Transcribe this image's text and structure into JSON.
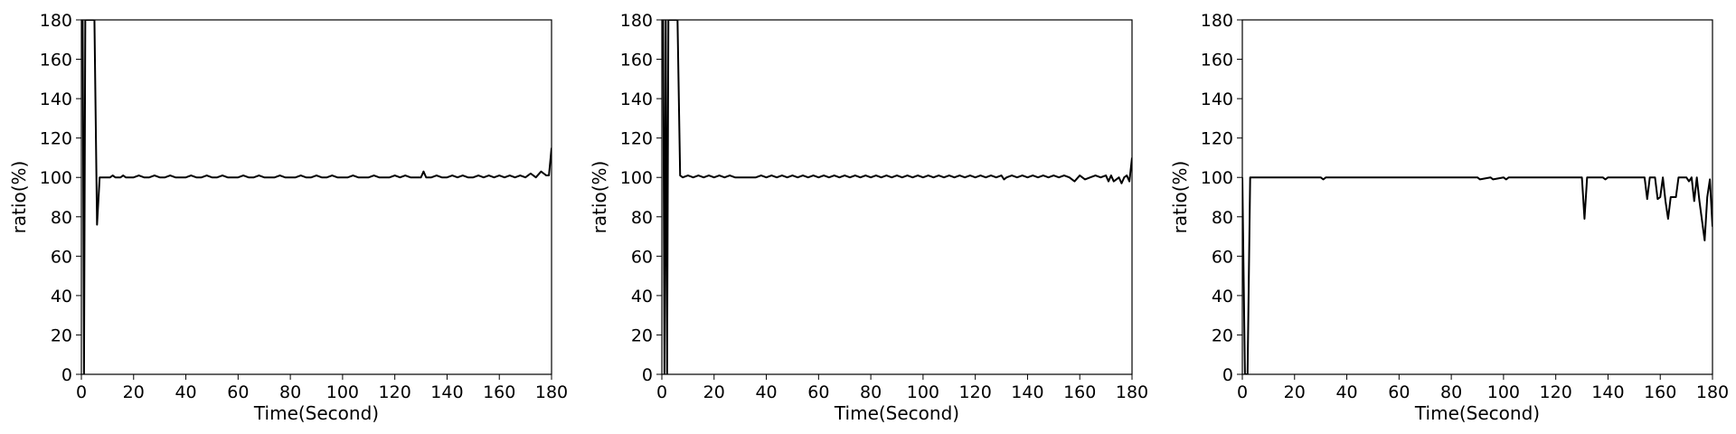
{
  "chart_data": [
    {
      "type": "line",
      "xlabel": "Time(Second)",
      "ylabel": "ratio(%)",
      "xlim": [
        0,
        180
      ],
      "ylim": [
        0,
        180
      ],
      "xticks": [
        0,
        20,
        40,
        60,
        80,
        100,
        120,
        140,
        160,
        180
      ],
      "yticks": [
        0,
        20,
        40,
        60,
        80,
        100,
        120,
        140,
        160,
        180
      ],
      "grid": false,
      "series": [
        {
          "x": [
            0,
            0.5,
            1,
            1.5,
            2,
            2.5,
            3,
            3.5,
            4,
            4.5,
            5,
            6,
            7,
            8,
            9,
            10,
            11,
            12,
            13,
            14,
            15,
            16,
            17,
            18,
            19,
            20,
            22,
            24,
            26,
            28,
            30,
            32,
            34,
            36,
            38,
            40,
            42,
            44,
            46,
            48,
            50,
            52,
            54,
            56,
            58,
            60,
            62,
            64,
            66,
            68,
            70,
            72,
            74,
            76,
            78,
            80,
            82,
            84,
            86,
            88,
            90,
            92,
            94,
            96,
            98,
            100,
            102,
            104,
            106,
            108,
            110,
            112,
            114,
            116,
            118,
            120,
            122,
            124,
            126,
            128,
            130,
            131,
            132,
            134,
            136,
            138,
            140,
            142,
            144,
            146,
            148,
            150,
            152,
            154,
            156,
            158,
            160,
            162,
            164,
            166,
            168,
            170,
            172,
            174,
            176,
            177,
            178,
            179,
            180
          ],
          "y": [
            180,
            180,
            0,
            180,
            180,
            180,
            180,
            180,
            180,
            180,
            180,
            76,
            100,
            100,
            100,
            100,
            100,
            101,
            100,
            100,
            100,
            101,
            100,
            100,
            100,
            100,
            101,
            100,
            100,
            101,
            100,
            100,
            101,
            100,
            100,
            100,
            101,
            100,
            100,
            101,
            100,
            100,
            101,
            100,
            100,
            100,
            101,
            100,
            100,
            101,
            100,
            100,
            100,
            101,
            100,
            100,
            100,
            101,
            100,
            100,
            101,
            100,
            100,
            101,
            100,
            100,
            100,
            101,
            100,
            100,
            100,
            101,
            100,
            100,
            100,
            101,
            100,
            101,
            100,
            100,
            100,
            103,
            100,
            100,
            101,
            100,
            100,
            101,
            100,
            101,
            100,
            100,
            101,
            100,
            101,
            100,
            101,
            100,
            101,
            100,
            101,
            100,
            102,
            100,
            103,
            102,
            101,
            101,
            115
          ]
        }
      ]
    },
    {
      "type": "line",
      "xlabel": "Time(Second)",
      "ylabel": "ratio(%)",
      "xlim": [
        0,
        180
      ],
      "ylim": [
        0,
        180
      ],
      "xticks": [
        0,
        20,
        40,
        60,
        80,
        100,
        120,
        140,
        160,
        180
      ],
      "yticks": [
        0,
        20,
        40,
        60,
        80,
        100,
        120,
        140,
        160,
        180
      ],
      "grid": false,
      "series": [
        {
          "x": [
            0,
            0.5,
            1,
            1.5,
            2,
            2.5,
            3,
            4,
            5,
            6,
            7,
            8,
            10,
            12,
            14,
            16,
            18,
            20,
            22,
            24,
            26,
            28,
            30,
            32,
            34,
            36,
            38,
            40,
            42,
            44,
            46,
            48,
            50,
            52,
            54,
            56,
            58,
            60,
            62,
            64,
            66,
            68,
            70,
            72,
            74,
            76,
            78,
            80,
            82,
            84,
            86,
            88,
            90,
            92,
            94,
            96,
            98,
            100,
            102,
            104,
            106,
            108,
            110,
            112,
            114,
            116,
            118,
            120,
            122,
            124,
            126,
            128,
            130,
            131,
            132,
            134,
            136,
            138,
            140,
            142,
            144,
            146,
            148,
            150,
            152,
            154,
            156,
            158,
            160,
            162,
            164,
            166,
            168,
            170,
            171,
            172,
            173,
            174,
            175,
            176,
            177,
            178,
            179,
            180
          ],
          "y": [
            180,
            180,
            0,
            180,
            0,
            180,
            180,
            180,
            180,
            180,
            101,
            100,
            101,
            100,
            101,
            100,
            101,
            100,
            101,
            100,
            101,
            100,
            100,
            100,
            100,
            100,
            101,
            100,
            101,
            100,
            101,
            100,
            101,
            100,
            101,
            100,
            101,
            100,
            101,
            100,
            101,
            100,
            101,
            100,
            101,
            100,
            101,
            100,
            101,
            100,
            101,
            100,
            101,
            100,
            101,
            100,
            101,
            100,
            101,
            100,
            101,
            100,
            101,
            100,
            101,
            100,
            101,
            100,
            101,
            100,
            101,
            100,
            101,
            99,
            100,
            101,
            100,
            101,
            100,
            101,
            100,
            101,
            100,
            101,
            100,
            101,
            100,
            98,
            101,
            99,
            100,
            101,
            100,
            101,
            98,
            101,
            98,
            99,
            100,
            97,
            100,
            101,
            98,
            110
          ]
        }
      ]
    },
    {
      "type": "line",
      "xlabel": "Time(Second)",
      "ylabel": "ratio(%)",
      "xlim": [
        0,
        180
      ],
      "ylim": [
        0,
        180
      ],
      "xticks": [
        0,
        20,
        40,
        60,
        80,
        100,
        120,
        140,
        160,
        180
      ],
      "yticks": [
        0,
        20,
        40,
        60,
        80,
        100,
        120,
        140,
        160,
        180
      ],
      "grid": false,
      "series": [
        {
          "x": [
            0,
            1,
            2,
            3,
            30,
            31,
            32,
            90,
            91,
            95,
            96,
            100,
            101,
            102,
            130,
            131,
            132,
            138,
            139,
            140,
            154,
            155,
            156,
            158,
            159,
            160,
            161,
            162,
            163,
            164,
            166,
            167,
            170,
            171,
            172,
            173,
            174,
            175,
            176,
            177,
            178,
            179,
            180
          ],
          "y": [
            100,
            0,
            0,
            100,
            100,
            99,
            100,
            100,
            99,
            100,
            99,
            100,
            99,
            100,
            100,
            79,
            100,
            100,
            99,
            100,
            100,
            89,
            100,
            100,
            89,
            90,
            100,
            88,
            79,
            90,
            90,
            100,
            100,
            98,
            100,
            88,
            100,
            88,
            78,
            68,
            90,
            99,
            75
          ]
        }
      ]
    }
  ]
}
